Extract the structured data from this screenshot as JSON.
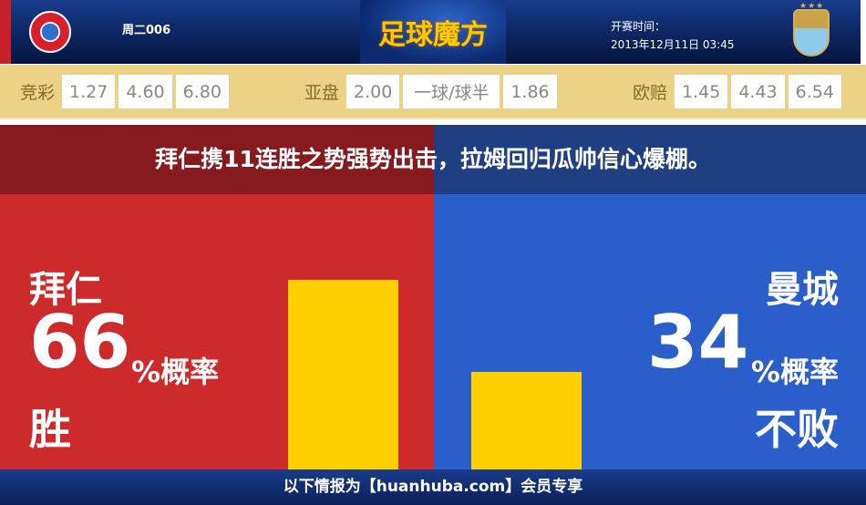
{
  "header": {
    "match_no": "周二006",
    "brand": "足球魔方",
    "kickoff_label": "开赛时间：",
    "kickoff_time": "2013年12月11日 03:45",
    "home_logo": "fc-bayern-crest",
    "away_logo": "man-city-crest"
  },
  "odds": {
    "jingcai": {
      "label": "竞彩",
      "values": [
        "1.27",
        "4.60",
        "6.80"
      ]
    },
    "yapan": {
      "label": "亚盘",
      "values": [
        "2.00",
        "一球/球半",
        "1.86"
      ]
    },
    "oupei": {
      "label": "欧赔",
      "values": [
        "1.45",
        "4.43",
        "6.54"
      ]
    }
  },
  "headline": "拜仁携11连胜之势强势出击，拉姆回归瓜帅信心爆棚。",
  "home": {
    "team": "拜仁",
    "percent": 66,
    "percent_text": "66",
    "suffix": "%概率",
    "result": "胜",
    "color": "#cc2a2b"
  },
  "away": {
    "team": "曼城",
    "percent": 34,
    "percent_text": "34",
    "suffix": "%概率",
    "result": "不败",
    "color": "#2a5ecb"
  },
  "bar_color": "#fed000",
  "footer": "以下情报为【huanhuba.com】会员专享"
}
